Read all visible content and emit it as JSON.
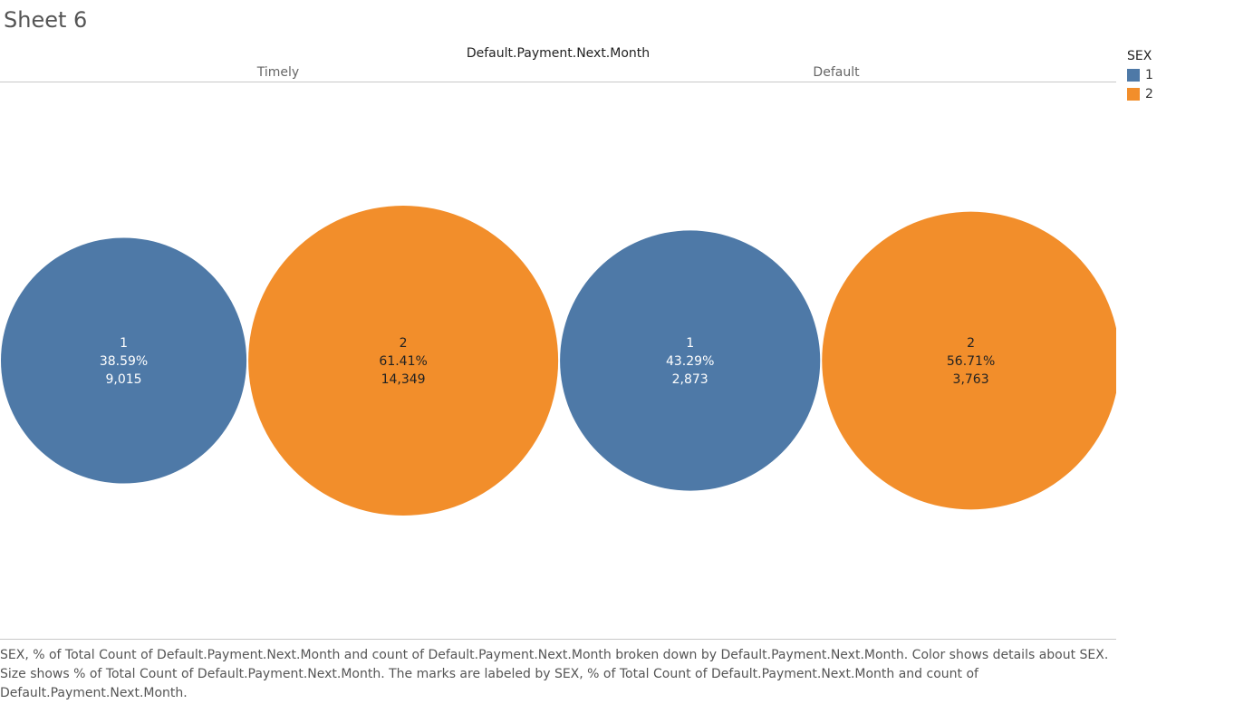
{
  "sheet_title": "Sheet 6",
  "caption": "SEX, % of Total Count of Default.Payment.Next.Month and count of Default.Payment.Next.Month broken down by Default.Payment.Next.Month.  Color shows details about SEX.  Size shows % of Total Count of Default.Payment.Next.Month.  The marks are labeled by SEX, % of Total Count of Default.Payment.Next.Month and count of Default.Payment.Next.Month.",
  "legend": {
    "title": "SEX",
    "items": [
      {
        "label": "1",
        "color": "#4e79a7"
      },
      {
        "label": "2",
        "color": "#f28e2b"
      }
    ]
  },
  "chart_data": {
    "type": "bubble",
    "column_header_title": "Default.Payment.Next.Month",
    "columns": [
      "Timely",
      "Default"
    ],
    "size_field": "% of Total Count of Default.Payment.Next.Month",
    "marks": [
      {
        "column": "Timely",
        "sex": "1",
        "percent_label": "38.59%",
        "percent": 38.59,
        "count_label": "9,015",
        "count": 9015,
        "color": "#4e79a7"
      },
      {
        "column": "Timely",
        "sex": "2",
        "percent_label": "61.41%",
        "percent": 61.41,
        "count_label": "14,349",
        "count": 14349,
        "color": "#f28e2b"
      },
      {
        "column": "Default",
        "sex": "1",
        "percent_label": "43.29%",
        "percent": 43.29,
        "count_label": "2,873",
        "count": 2873,
        "color": "#4e79a7"
      },
      {
        "column": "Default",
        "sex": "2",
        "percent_label": "56.71%",
        "percent": 56.71,
        "count_label": "3,763",
        "count": 3763,
        "color": "#f28e2b"
      }
    ]
  }
}
